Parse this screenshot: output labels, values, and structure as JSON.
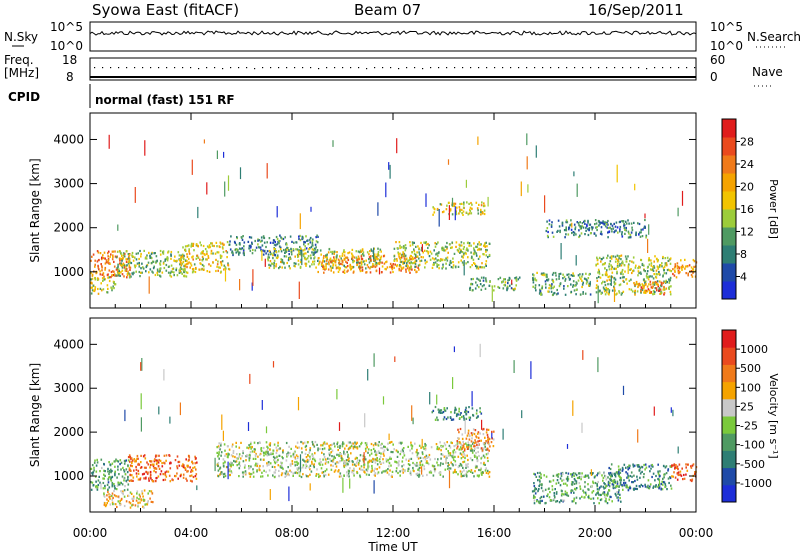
{
  "header": {
    "title": "Syowa East (fitACF)",
    "beam": "Beam 07",
    "date": "16/Sep/2011"
  },
  "top_panels": {
    "nsky_label": "N.Sky",
    "nsky_ticks": [
      "10^5",
      "10^0"
    ],
    "nsearch_label": "N.Search",
    "nsearch_ticks": [
      "10^5",
      "10^0"
    ],
    "freq_label": "Freq.",
    "freq_unit": "[MHz]",
    "freq_ticks": [
      "18",
      "8"
    ],
    "nave_label": "Nave",
    "nave_ticks": [
      "60",
      "0"
    ],
    "cpid_label": "CPID",
    "cpid_text": "normal (fast) 151 RF"
  },
  "chart_data": [
    {
      "type": "heatmap",
      "name": "power",
      "ylabel": "Slant Range [km]",
      "yticks": [
        1000,
        2000,
        3000,
        4000
      ],
      "ylim": [
        180,
        4600
      ],
      "xlim_hours": [
        0,
        24
      ],
      "colorbar": {
        "label": "Power [dB]",
        "ticks": [
          "4",
          "8",
          "12",
          "16",
          "20",
          "24",
          "28"
        ],
        "colors": [
          "#1d2ed8",
          "#1f4aa8",
          "#2e7e74",
          "#4f9a62",
          "#9ccc3a",
          "#f2c400",
          "#f5a300",
          "#f07a1a",
          "#ea4a1e",
          "#e01c1c"
        ]
      },
      "regions": [
        {
          "t": [
            0.0,
            1.6
          ],
          "r": [
            900,
            1500
          ],
          "v": 0.75
        },
        {
          "t": [
            0.0,
            1.0
          ],
          "r": [
            500,
            900
          ],
          "v": 0.5
        },
        {
          "t": [
            1.0,
            3.8
          ],
          "r": [
            900,
            1500
          ],
          "v": 0.4
        },
        {
          "t": [
            3.5,
            5.5
          ],
          "r": [
            1000,
            1700
          ],
          "v": 0.55
        },
        {
          "t": [
            5.5,
            9.0
          ],
          "r": [
            1400,
            1850
          ],
          "v": 0.25
        },
        {
          "t": [
            7.0,
            11.5
          ],
          "r": [
            1100,
            1550
          ],
          "v": 0.45
        },
        {
          "t": [
            9.0,
            13.0
          ],
          "r": [
            1000,
            1400
          ],
          "v": 0.7
        },
        {
          "t": [
            12.0,
            15.8
          ],
          "r": [
            1100,
            1700
          ],
          "v": 0.45
        },
        {
          "t": [
            13.5,
            15.6
          ],
          "r": [
            2300,
            2600
          ],
          "v": 0.55
        },
        {
          "t": [
            15.0,
            17.0
          ],
          "r": [
            600,
            900
          ],
          "v": 0.35
        },
        {
          "t": [
            17.5,
            19.8
          ],
          "r": [
            500,
            1000
          ],
          "v": 0.35
        },
        {
          "t": [
            20.0,
            23.0
          ],
          "r": [
            500,
            1400
          ],
          "v": 0.45
        },
        {
          "t": [
            21.5,
            22.8
          ],
          "r": [
            500,
            800
          ],
          "v": 0.75
        },
        {
          "t": [
            23.0,
            24.0
          ],
          "r": [
            900,
            1300
          ],
          "v": 0.7
        },
        {
          "t": [
            18.0,
            22.0
          ],
          "r": [
            1800,
            2200
          ],
          "v": 0.25
        }
      ]
    },
    {
      "type": "heatmap",
      "name": "velocity",
      "ylabel": "Slant Range [km]",
      "yticks": [
        1000,
        2000,
        3000,
        4000
      ],
      "ylim": [
        180,
        4600
      ],
      "xlim_hours": [
        0,
        24
      ],
      "colorbar": {
        "label": "Velocity [m s⁻¹]",
        "ticks": [
          "1000",
          "500",
          "100",
          "25",
          "-25",
          "-100",
          "-500",
          "-1000"
        ],
        "colors": [
          "#1d2ed8",
          "#1f4aa8",
          "#2e7e74",
          "#4f9a62",
          "#7ac93b",
          "#c8c8c8",
          "#f5a300",
          "#f07a1a",
          "#ea4a1e",
          "#e01c1c"
        ]
      },
      "regions": [
        {
          "t": [
            0.0,
            1.5
          ],
          "r": [
            700,
            1400
          ],
          "v": 0.35
        },
        {
          "t": [
            1.5,
            4.2
          ],
          "r": [
            900,
            1500
          ],
          "v": 0.8
        },
        {
          "t": [
            0.5,
            2.5
          ],
          "r": [
            300,
            700
          ],
          "v": 0.6
        },
        {
          "t": [
            5.0,
            15.8
          ],
          "r": [
            1000,
            1800
          ],
          "v": 0.5
        },
        {
          "t": [
            13.5,
            15.5
          ],
          "r": [
            2300,
            2600
          ],
          "v": 0.3
        },
        {
          "t": [
            14.5,
            16.0
          ],
          "r": [
            1600,
            2100
          ],
          "v": 0.7
        },
        {
          "t": [
            17.5,
            21.0
          ],
          "r": [
            400,
            1100
          ],
          "v": 0.35
        },
        {
          "t": [
            20.5,
            23.0
          ],
          "r": [
            700,
            1300
          ],
          "v": 0.3
        },
        {
          "t": [
            23.0,
            24.0
          ],
          "r": [
            900,
            1300
          ],
          "v": 0.78
        }
      ]
    }
  ],
  "x_axis": {
    "ticks": [
      "00:00",
      "04:00",
      "08:00",
      "12:00",
      "16:00",
      "20:00",
      "00:00"
    ],
    "label": "Time UT"
  }
}
